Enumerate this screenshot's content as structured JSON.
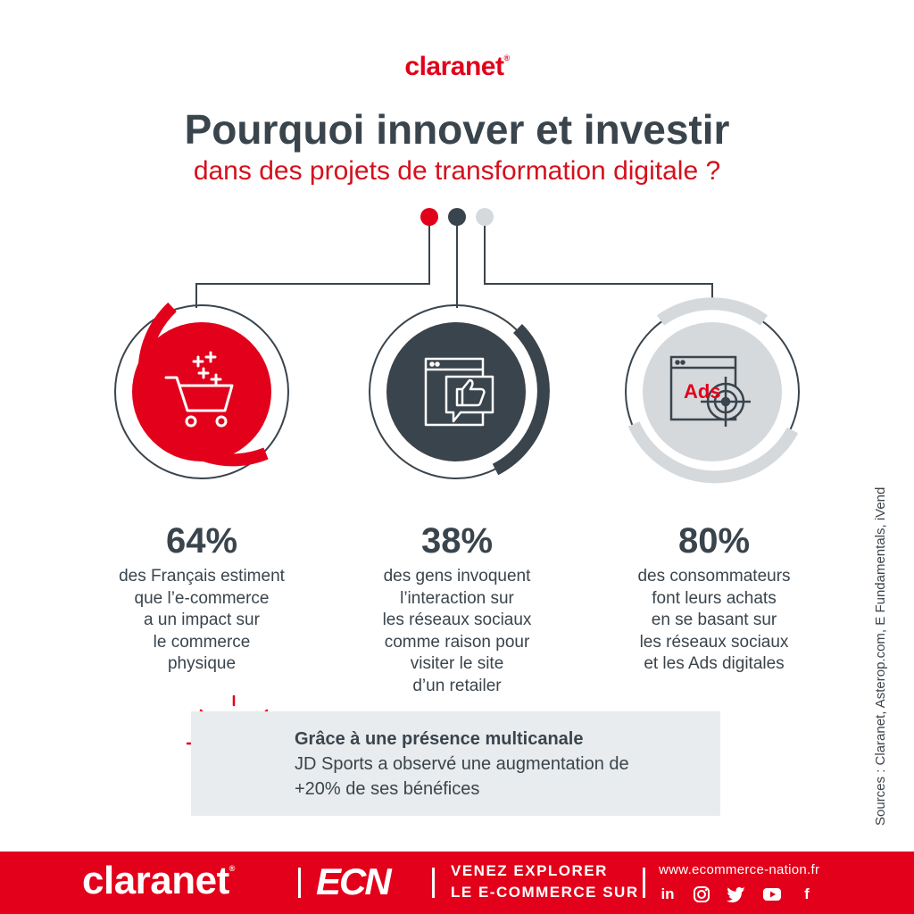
{
  "brand": {
    "name": "claranet",
    "reg": "®",
    "color": "#e2001a"
  },
  "title": "Pourquoi innover et investir",
  "subtitle": "dans des projets de transformation digitale ?",
  "stats": [
    {
      "value": "64%",
      "lines": [
        "des Français estiment",
        "que l’e-commerce",
        "a un impact sur",
        "le commerce",
        "physique"
      ],
      "icon": "shopping-cart-icon",
      "color": "#e2001a"
    },
    {
      "value": "38%",
      "lines": [
        "des gens invoquent",
        "l’interaction sur",
        "les réseaux sociaux",
        "comme raison pour",
        "visiter le site",
        "d’un retailer"
      ],
      "icon": "thumbs-up-browser-icon",
      "color": "#3a444c"
    },
    {
      "value": "80%",
      "lines": [
        "des consommateurs",
        "font leurs achats",
        "en se basant sur",
        "les réseaux sociaux",
        "et les Ads digitales"
      ],
      "icon": "ads-target-icon",
      "icon_text": "Ads",
      "color": "#d5d9dc"
    }
  ],
  "callout": {
    "title": "Grâce à une présence multicanale",
    "line1": "JD Sports a observé une augmentation de",
    "line2": "+20% de ses bénéfices",
    "icon": "lightbulb-icon"
  },
  "sources": "Sources : Claranet, Asterop.com, E Fundamentals, iVend",
  "footer": {
    "brand": "claranet",
    "reg": "®",
    "ecn": "ECN",
    "tagline_1": "VENEZ EXPLORER",
    "tagline_2": "LE E-COMMERCE SUR",
    "url": "www.ecommerce-nation.fr",
    "social": [
      "in",
      "instagram-icon",
      "twitter-icon",
      "youtube-icon",
      "f"
    ]
  }
}
